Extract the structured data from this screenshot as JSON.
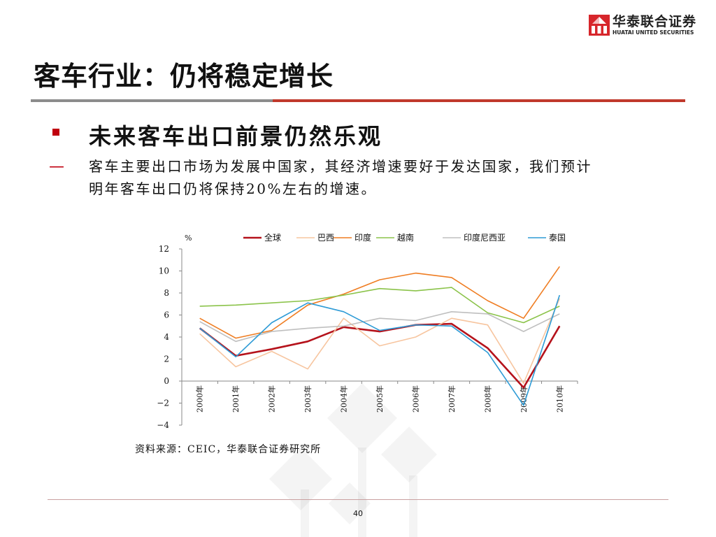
{
  "header": {
    "logo_cn": "华泰联合证券",
    "logo_en": "HUATAI UNITED SECURITIES",
    "brand_color": "#d7262b"
  },
  "slide": {
    "title": "客车行业：仍将稳定增长",
    "bullet": "未来客车出口前景仍然乐观",
    "dash": "—",
    "body_line1": "客车主要出口市场为发展中国家，其经济增速要好于发达国家，我们预计",
    "body_line2": "明年客车出口仍将保持20%左右的增速。",
    "source": "资料来源：CEIC，华泰联合证券研究所",
    "page_number": "40"
  },
  "chart_data": {
    "type": "line",
    "ylabel": "%",
    "ylim": [
      -4,
      12
    ],
    "yticks": [
      "12",
      "10",
      "8",
      "6",
      "4",
      "2",
      "0",
      "−2",
      "−4"
    ],
    "categories": [
      "2000年",
      "2001年",
      "2002年",
      "2003年",
      "2004年",
      "2005年",
      "2006年",
      "2007年",
      "2008年",
      "2009年",
      "2010年"
    ],
    "legend_position": "top",
    "grid": false,
    "series": [
      {
        "name": "全球",
        "color": "#b5121b",
        "values": [
          4.8,
          2.3,
          2.9,
          3.6,
          4.9,
          4.5,
          5.1,
          5.2,
          3.0,
          -0.6,
          5.0
        ]
      },
      {
        "name": "巴西",
        "color": "#f7c59f",
        "values": [
          4.3,
          1.3,
          2.7,
          1.1,
          5.7,
          3.2,
          4.0,
          5.7,
          5.1,
          -0.2,
          7.5
        ]
      },
      {
        "name": "印度",
        "color": "#ef7d22",
        "values": [
          5.7,
          3.9,
          4.6,
          6.9,
          7.9,
          9.2,
          9.8,
          9.4,
          7.3,
          5.7,
          10.4
        ]
      },
      {
        "name": "越南",
        "color": "#8bc34a",
        "values": [
          6.8,
          6.9,
          7.1,
          7.3,
          7.8,
          8.4,
          8.2,
          8.5,
          6.2,
          5.3,
          6.8
        ]
      },
      {
        "name": "印度尼西亚",
        "color": "#bfbfbf",
        "values": [
          5.4,
          3.6,
          4.5,
          4.8,
          5.0,
          5.7,
          5.5,
          6.3,
          6.1,
          4.5,
          6.1
        ]
      },
      {
        "name": "泰国",
        "color": "#2e9bd6",
        "values": [
          4.8,
          2.2,
          5.3,
          7.1,
          6.3,
          4.6,
          5.1,
          5.0,
          2.6,
          -2.2,
          7.8
        ]
      }
    ]
  }
}
